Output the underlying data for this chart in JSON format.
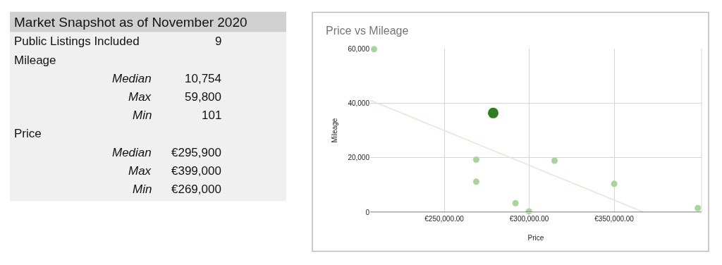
{
  "chart_data": [
    {
      "type": "other",
      "title": "Market Snapshot as of November 2020",
      "categories": [
        "Public Listings Included",
        "Mileage",
        "Median",
        "Max",
        "Min",
        "Price",
        "Median",
        "Max",
        "Min"
      ],
      "value_labels": [
        "9",
        null,
        "10,754",
        "59,800",
        "101",
        null,
        "€295,900",
        "€399,000",
        "€269,000"
      ]
    },
    {
      "type": "scatter",
      "title": "Price vs Mileage",
      "xlabel": "Price",
      "ylabel": "Mileage",
      "xlim": [
        206400,
        401400
      ],
      "ylim": [
        0,
        60000
      ],
      "xticks": [
        {
          "value": 250000,
          "label": "€250,000.00"
        },
        {
          "value": 300000,
          "label": "€300,000.00"
        },
        {
          "value": 350000,
          "label": "€350,000.00"
        }
      ],
      "yticks": [
        0,
        {
          "value": 20000,
          "label": "20,000"
        },
        {
          "value": 40000,
          "label": "40,000"
        },
        {
          "value": 60000,
          "label": "60,000"
        }
      ],
      "grid": true,
      "marker": "circle",
      "series": [
        {
          "color": "#a9d49c",
          "x": [
            208700,
            268800,
            268800,
            291900,
            299800,
            314900,
            350000,
            399200
          ],
          "values": [
            59800,
            19300,
            11200,
            3300,
            300,
            18900,
            10400,
            1500
          ]
        },
        {
          "color": "#2e7d1e",
          "x": [
            278800
          ],
          "values": [
            36400
          ]
        },
        {
          "type": "line",
          "marker": "none",
          "color": "#d9ead3",
          "x": [
            206400,
            367400
          ],
          "values": [
            41100,
            0
          ]
        }
      ]
    }
  ]
}
